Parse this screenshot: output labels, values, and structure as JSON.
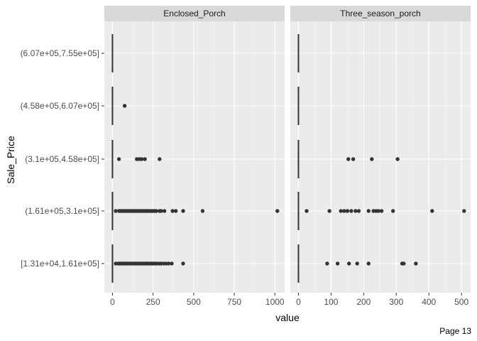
{
  "page": {
    "footer": "Page 13"
  },
  "chart_data": {
    "type": "boxplot",
    "xlabel": "value",
    "ylabel": "Sale_Price",
    "categories": [
      "[1.31e+04,1.61e+05]",
      "(1.61e+05,3.1e+05]",
      "(3.1e+05,4.58e+05]",
      "(4.58e+05,6.07e+05]",
      "(6.07e+05,7.55e+05]"
    ],
    "panels": [
      {
        "strip": "Enclosed_Porch",
        "xlim": [
          -50,
          1060
        ],
        "xticks": [
          0,
          250,
          500,
          750,
          1000
        ],
        "box": [
          0,
          0,
          0,
          0,
          0
        ],
        "outliers": [
          [
            20,
            35,
            45,
            55,
            65,
            75,
            85,
            95,
            105,
            115,
            125,
            135,
            145,
            155,
            165,
            175,
            185,
            195,
            205,
            215,
            225,
            235,
            245,
            255,
            265,
            275,
            290,
            300,
            315,
            330,
            345,
            365,
            435
          ],
          [
            20,
            40,
            50,
            60,
            70,
            80,
            90,
            100,
            110,
            120,
            130,
            140,
            150,
            160,
            170,
            180,
            190,
            200,
            210,
            220,
            230,
            240,
            250,
            260,
            270,
            290,
            300,
            320,
            370,
            390,
            435,
            555,
            1015
          ],
          [
            40,
            150,
            165,
            180,
            200,
            290
          ],
          [
            75
          ],
          []
        ]
      },
      {
        "strip": "Three_season_porch",
        "xlim": [
          -25,
          528
        ],
        "xticks": [
          0,
          100,
          200,
          300,
          400,
          500
        ],
        "box": [
          0,
          0,
          0,
          0,
          0
        ],
        "outliers": [
          [
            88,
            120,
            155,
            180,
            215,
            318,
            323,
            360
          ],
          [
            25,
            95,
            130,
            140,
            150,
            162,
            175,
            185,
            215,
            230,
            238,
            245,
            255,
            290,
            410,
            508
          ],
          [
            153,
            168,
            225,
            304
          ],
          [],
          []
        ]
      }
    ]
  }
}
